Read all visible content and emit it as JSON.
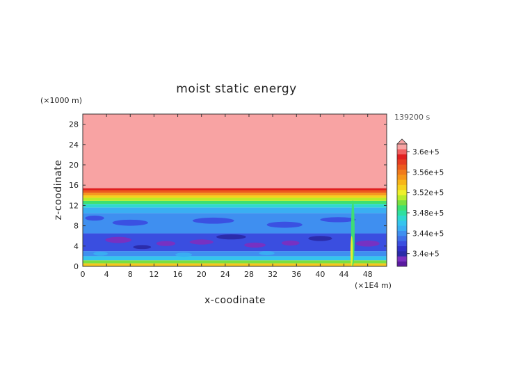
{
  "chart_data": {
    "type": "heatmap",
    "title": "moist static energy",
    "xlabel": "x-coodinate",
    "ylabel": "z-coodinate",
    "x_unit": "(×1E4 m)",
    "y_unit": "(×1000 m)",
    "time_label": "139200 s",
    "xlim": [
      0,
      51.2
    ],
    "ylim": [
      0,
      30
    ],
    "x_ticks": [
      "0",
      "4",
      "8",
      "12",
      "16",
      "20",
      "24",
      "28",
      "32",
      "36",
      "40",
      "44",
      "48"
    ],
    "y_ticks": [
      "0",
      "4",
      "8",
      "12",
      "16",
      "20",
      "24",
      "28"
    ],
    "colorbar": {
      "tick_labels": [
        "3.4e+5",
        "3.44e+5",
        "3.48e+5",
        "3.52e+5",
        "3.56e+5",
        "3.6e+5"
      ],
      "extend": "max",
      "levels": [
        {
          "value": "3.38e+5",
          "color": "#5a1aa0"
        },
        {
          "value": "3.39e+5",
          "color": "#7a2fc0"
        },
        {
          "value": "3.40e+5",
          "color": "#2a2aa8"
        },
        {
          "value": "3.41e+5",
          "color": "#3030c8"
        },
        {
          "value": "3.42e+5",
          "color": "#3a4ee0"
        },
        {
          "value": "3.43e+5",
          "color": "#3f6fe8"
        },
        {
          "value": "3.44e+5",
          "color": "#3f8ff0"
        },
        {
          "value": "3.45e+5",
          "color": "#3aaef2"
        },
        {
          "value": "3.46e+5",
          "color": "#35c4ee"
        },
        {
          "value": "3.47e+5",
          "color": "#2fd8d0"
        },
        {
          "value": "3.48e+5",
          "color": "#2ee0a0"
        },
        {
          "value": "3.49e+5",
          "color": "#3ee070"
        },
        {
          "value": "3.50e+5",
          "color": "#7ae040"
        },
        {
          "value": "3.51e+5",
          "color": "#b8ec2a"
        },
        {
          "value": "3.52e+5",
          "color": "#eef02a"
        },
        {
          "value": "3.53e+5",
          "color": "#f5d21e"
        },
        {
          "value": "3.54e+5",
          "color": "#f7b518"
        },
        {
          "value": "3.55e+5",
          "color": "#f5961a"
        },
        {
          "value": "3.56e+5",
          "color": "#f07a1c"
        },
        {
          "value": "3.57e+5",
          "color": "#ec5a1e"
        },
        {
          "value": "3.58e+5",
          "color": "#e63c22"
        },
        {
          "value": "3.59e+5",
          "color": "#e02020"
        },
        {
          "value": "3.60e+5",
          "color": "#f06060"
        },
        {
          "value": "3.61e+5",
          "color": "#f8a3a3"
        }
      ]
    },
    "layers": [
      {
        "z_range": [
          0,
          0.6
        ],
        "color": "#f5c61e"
      },
      {
        "z_range": [
          0.6,
          1.2
        ],
        "color": "#7ae040"
      },
      {
        "z_range": [
          1.2,
          2.0
        ],
        "color": "#35c4ee"
      },
      {
        "z_range": [
          2.0,
          3.0
        ],
        "color": "#3f8ff0"
      },
      {
        "z_range": [
          3.0,
          6.5
        ],
        "color": "#3a4ee0"
      },
      {
        "z_range": [
          6.5,
          10.5
        ],
        "color": "#3f8ff0"
      },
      {
        "z_range": [
          10.5,
          11.6
        ],
        "color": "#3aaef2"
      },
      {
        "z_range": [
          11.6,
          12.3
        ],
        "color": "#2fd8d0"
      },
      {
        "z_range": [
          12.3,
          12.9
        ],
        "color": "#3ee070"
      },
      {
        "z_range": [
          12.9,
          13.5
        ],
        "color": "#b8ec2a"
      },
      {
        "z_range": [
          13.5,
          14.0
        ],
        "color": "#f5d21e"
      },
      {
        "z_range": [
          14.0,
          14.5
        ],
        "color": "#f5961a"
      },
      {
        "z_range": [
          14.5,
          15.0
        ],
        "color": "#ec5a1e"
      },
      {
        "z_range": [
          15.0,
          15.4
        ],
        "color": "#e02020"
      },
      {
        "z_range": [
          15.4,
          30.0
        ],
        "color": "#f8a3a3"
      }
    ],
    "blobs": [
      {
        "x": 6,
        "z": 5.2,
        "rx": 2.2,
        "rz": 0.6,
        "color": "#7a2fc0"
      },
      {
        "x": 14,
        "z": 4.5,
        "rx": 1.6,
        "rz": 0.5,
        "color": "#7a2fc0"
      },
      {
        "x": 20,
        "z": 4.8,
        "rx": 2.0,
        "rz": 0.5,
        "color": "#7a2fc0"
      },
      {
        "x": 29,
        "z": 4.2,
        "rx": 1.8,
        "rz": 0.5,
        "color": "#7a2fc0"
      },
      {
        "x": 35,
        "z": 4.6,
        "rx": 1.5,
        "rz": 0.5,
        "color": "#7a2fc0"
      },
      {
        "x": 48,
        "z": 4.5,
        "rx": 2.0,
        "rz": 0.6,
        "color": "#7a2fc0"
      },
      {
        "x": 10,
        "z": 3.8,
        "rx": 1.5,
        "rz": 0.4,
        "color": "#2a2aa8"
      },
      {
        "x": 25,
        "z": 5.8,
        "rx": 2.5,
        "rz": 0.5,
        "color": "#2a2aa8"
      },
      {
        "x": 40,
        "z": 5.5,
        "rx": 2.0,
        "rz": 0.5,
        "color": "#2a2aa8"
      },
      {
        "x": 8,
        "z": 8.6,
        "rx": 3.0,
        "rz": 0.6,
        "color": "#3a4ee0"
      },
      {
        "x": 22,
        "z": 9.0,
        "rx": 3.5,
        "rz": 0.6,
        "color": "#3a4ee0"
      },
      {
        "x": 34,
        "z": 8.2,
        "rx": 3.0,
        "rz": 0.6,
        "color": "#3a4ee0"
      },
      {
        "x": 43,
        "z": 9.2,
        "rx": 3.0,
        "rz": 0.5,
        "color": "#3a4ee0"
      },
      {
        "x": 2,
        "z": 9.5,
        "rx": 1.6,
        "rz": 0.5,
        "color": "#3a4ee0"
      },
      {
        "x": 3,
        "z": 2.5,
        "rx": 1.2,
        "rz": 0.4,
        "color": "#3aaef2"
      },
      {
        "x": 17,
        "z": 2.3,
        "rx": 1.4,
        "rz": 0.4,
        "color": "#3aaef2"
      },
      {
        "x": 31,
        "z": 2.6,
        "rx": 1.3,
        "rz": 0.4,
        "color": "#3aaef2"
      },
      {
        "x": 45.5,
        "z": 6.5,
        "rx": 0.3,
        "rz": 6.5,
        "color": "#3ee070"
      },
      {
        "x": 45.3,
        "z": 3.0,
        "rx": 0.2,
        "rz": 3.0,
        "color": "#eef02a"
      }
    ]
  }
}
